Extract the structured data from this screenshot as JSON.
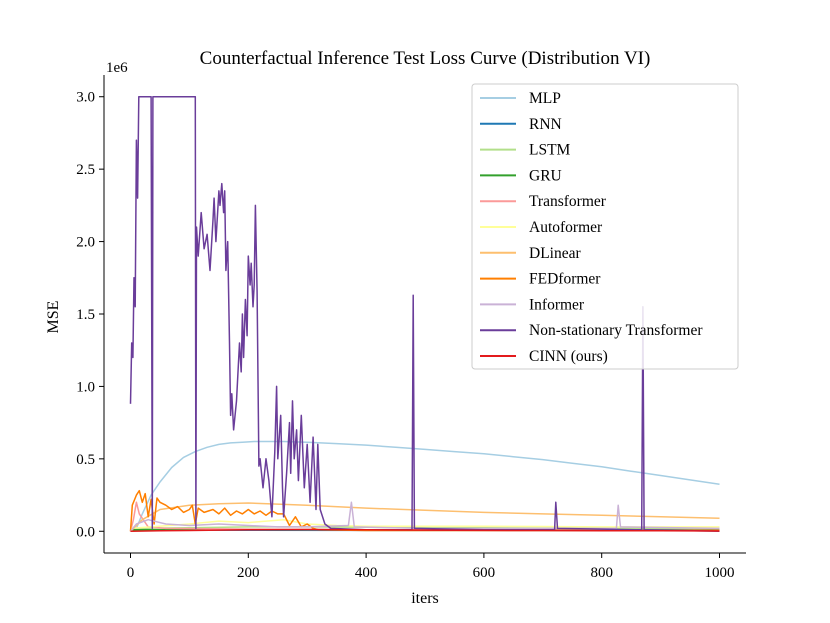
{
  "chart_data": {
    "type": "line",
    "title": "Counterfactual Inference Test Loss Curve (Distribution VI)",
    "xlabel": "iters",
    "ylabel": "MSE",
    "y_scale_label": "1e6",
    "xlim": [
      -45,
      1045
    ],
    "ylim": [
      -0.15,
      3.15
    ],
    "x_ticks": [
      0,
      200,
      400,
      600,
      800,
      1000
    ],
    "x_tick_labels": [
      "0",
      "200",
      "400",
      "600",
      "800",
      "1000"
    ],
    "y_ticks": [
      0.0,
      0.5,
      1.0,
      1.5,
      2.0,
      2.5,
      3.0
    ],
    "y_tick_labels": [
      "0.0",
      "0.5",
      "1.0",
      "1.5",
      "2.0",
      "2.5",
      "3.0"
    ],
    "legend_position": "upper-right",
    "series": [
      {
        "name": "MLP",
        "color": "#a6cee3",
        "points": [
          [
            0,
            0.0
          ],
          [
            10,
            0.02
          ],
          [
            20,
            0.12
          ],
          [
            35,
            0.25
          ],
          [
            50,
            0.34
          ],
          [
            70,
            0.44
          ],
          [
            90,
            0.51
          ],
          [
            110,
            0.55
          ],
          [
            130,
            0.58
          ],
          [
            150,
            0.6
          ],
          [
            170,
            0.61
          ],
          [
            190,
            0.615
          ],
          [
            210,
            0.62
          ],
          [
            230,
            0.62
          ],
          [
            260,
            0.62
          ],
          [
            300,
            0.615
          ],
          [
            350,
            0.605
          ],
          [
            400,
            0.595
          ],
          [
            450,
            0.58
          ],
          [
            500,
            0.565
          ],
          [
            550,
            0.55
          ],
          [
            600,
            0.535
          ],
          [
            650,
            0.515
          ],
          [
            700,
            0.495
          ],
          [
            750,
            0.47
          ],
          [
            800,
            0.445
          ],
          [
            850,
            0.415
          ],
          [
            900,
            0.385
          ],
          [
            950,
            0.355
          ],
          [
            1000,
            0.325
          ]
        ]
      },
      {
        "name": "RNN",
        "color": "#1f78b4",
        "points": [
          [
            0,
            0.01
          ],
          [
            100,
            0.008
          ],
          [
            200,
            0.007
          ],
          [
            400,
            0.006
          ],
          [
            600,
            0.006
          ],
          [
            800,
            0.005
          ],
          [
            1000,
            0.005
          ]
        ]
      },
      {
        "name": "LSTM",
        "color": "#b2df8a",
        "points": [
          [
            0,
            0.02
          ],
          [
            100,
            0.025
          ],
          [
            200,
            0.03
          ],
          [
            300,
            0.03
          ],
          [
            400,
            0.028
          ],
          [
            500,
            0.025
          ],
          [
            600,
            0.025
          ],
          [
            700,
            0.022
          ],
          [
            800,
            0.02
          ],
          [
            900,
            0.02
          ],
          [
            1000,
            0.018
          ]
        ]
      },
      {
        "name": "GRU",
        "color": "#33a02c",
        "points": [
          [
            0,
            0.01
          ],
          [
            200,
            0.01
          ],
          [
            400,
            0.01
          ],
          [
            600,
            0.01
          ],
          [
            780,
            0.01
          ],
          [
            800,
            0.015
          ],
          [
            820,
            0.01
          ],
          [
            1000,
            0.01
          ]
        ]
      },
      {
        "name": "Transformer",
        "color": "#fb9a99",
        "points": [
          [
            0,
            0.0
          ],
          [
            5,
            0.08
          ],
          [
            10,
            0.2
          ],
          [
            15,
            0.12
          ],
          [
            30,
            0.03
          ],
          [
            60,
            0.02
          ],
          [
            200,
            0.015
          ],
          [
            400,
            0.01
          ],
          [
            600,
            0.01
          ],
          [
            1000,
            0.008
          ]
        ]
      },
      {
        "name": "Autoformer",
        "color": "#ffff99",
        "points": [
          [
            0,
            0.02
          ],
          [
            100,
            0.05
          ],
          [
            150,
            0.07
          ],
          [
            200,
            0.06
          ],
          [
            260,
            0.08
          ],
          [
            300,
            0.05
          ],
          [
            350,
            0.04
          ],
          [
            400,
            0.035
          ],
          [
            500,
            0.035
          ],
          [
            600,
            0.035
          ],
          [
            700,
            0.033
          ],
          [
            800,
            0.03
          ],
          [
            900,
            0.03
          ],
          [
            1000,
            0.03
          ]
        ]
      },
      {
        "name": "DLinear",
        "color": "#fdbf6f",
        "points": [
          [
            0,
            0.0
          ],
          [
            20,
            0.08
          ],
          [
            50,
            0.15
          ],
          [
            100,
            0.18
          ],
          [
            150,
            0.19
          ],
          [
            200,
            0.195
          ],
          [
            300,
            0.18
          ],
          [
            400,
            0.16
          ],
          [
            500,
            0.145
          ],
          [
            600,
            0.13
          ],
          [
            700,
            0.12
          ],
          [
            800,
            0.11
          ],
          [
            900,
            0.1
          ],
          [
            1000,
            0.09
          ]
        ]
      },
      {
        "name": "FEDformer",
        "color": "#ff7f00",
        "points": [
          [
            0,
            0.0
          ],
          [
            3,
            0.18
          ],
          [
            10,
            0.25
          ],
          [
            15,
            0.28
          ],
          [
            20,
            0.2
          ],
          [
            25,
            0.26
          ],
          [
            30,
            0.1
          ],
          [
            35,
            0.22
          ],
          [
            40,
            0.05
          ],
          [
            45,
            0.23
          ],
          [
            50,
            0.2
          ],
          [
            60,
            0.18
          ],
          [
            70,
            0.15
          ],
          [
            80,
            0.17
          ],
          [
            90,
            0.13
          ],
          [
            100,
            0.15
          ],
          [
            105,
            0.18
          ],
          [
            110,
            0.05
          ],
          [
            115,
            0.16
          ],
          [
            125,
            0.13
          ],
          [
            140,
            0.15
          ],
          [
            150,
            0.12
          ],
          [
            160,
            0.16
          ],
          [
            170,
            0.11
          ],
          [
            180,
            0.14
          ],
          [
            190,
            0.12
          ],
          [
            200,
            0.15
          ],
          [
            210,
            0.12
          ],
          [
            220,
            0.14
          ],
          [
            230,
            0.11
          ],
          [
            240,
            0.14
          ],
          [
            250,
            0.12
          ],
          [
            260,
            0.12
          ],
          [
            270,
            0.04
          ],
          [
            280,
            0.1
          ],
          [
            290,
            0.03
          ],
          [
            300,
            0.05
          ],
          [
            310,
            0.02
          ],
          [
            320,
            0.01
          ],
          [
            400,
            0.005
          ],
          [
            600,
            0.005
          ],
          [
            1000,
            0.005
          ]
        ]
      },
      {
        "name": "Informer",
        "color": "#cab2d6",
        "points": [
          [
            0,
            0.0
          ],
          [
            10,
            0.05
          ],
          [
            30,
            0.08
          ],
          [
            60,
            0.05
          ],
          [
            100,
            0.04
          ],
          [
            150,
            0.05
          ],
          [
            200,
            0.04
          ],
          [
            250,
            0.03
          ],
          [
            300,
            0.03
          ],
          [
            370,
            0.04
          ],
          [
            375,
            0.2
          ],
          [
            380,
            0.03
          ],
          [
            500,
            0.02
          ],
          [
            700,
            0.02
          ],
          [
            825,
            0.02
          ],
          [
            828,
            0.18
          ],
          [
            832,
            0.03
          ],
          [
            1000,
            0.02
          ]
        ]
      },
      {
        "name": "Non-stationary Transformer",
        "color": "#6a3d9a",
        "points": [
          [
            0,
            0.88
          ],
          [
            2,
            1.3
          ],
          [
            4,
            1.2
          ],
          [
            6,
            1.75
          ],
          [
            8,
            1.55
          ],
          [
            10,
            2.7
          ],
          [
            12,
            2.3
          ],
          [
            14,
            3.0
          ],
          [
            20,
            3.0
          ],
          [
            30,
            3.0
          ],
          [
            35,
            3.0
          ],
          [
            37,
            0.02
          ],
          [
            38,
            3.0
          ],
          [
            40,
            3.0
          ],
          [
            60,
            3.0
          ],
          [
            80,
            3.0
          ],
          [
            100,
            3.0
          ],
          [
            110,
            3.0
          ],
          [
            111,
            0.02
          ],
          [
            112,
            2.1
          ],
          [
            115,
            1.9
          ],
          [
            120,
            2.2
          ],
          [
            125,
            1.95
          ],
          [
            130,
            2.05
          ],
          [
            135,
            1.8
          ],
          [
            140,
            2.15
          ],
          [
            142,
            2.3
          ],
          [
            145,
            2.0
          ],
          [
            150,
            2.35
          ],
          [
            152,
            2.25
          ],
          [
            155,
            2.4
          ],
          [
            158,
            2.2
          ],
          [
            160,
            2.35
          ],
          [
            162,
            1.8
          ],
          [
            165,
            2.0
          ],
          [
            168,
            1.3
          ],
          [
            170,
            0.8
          ],
          [
            172,
            0.95
          ],
          [
            175,
            0.7
          ],
          [
            180,
            0.9
          ],
          [
            185,
            1.3
          ],
          [
            188,
            1.1
          ],
          [
            190,
            1.5
          ],
          [
            192,
            1.2
          ],
          [
            195,
            1.6
          ],
          [
            198,
            1.35
          ],
          [
            200,
            1.9
          ],
          [
            203,
            1.7
          ],
          [
            205,
            1.85
          ],
          [
            208,
            1.55
          ],
          [
            210,
            1.7
          ],
          [
            212,
            2.25
          ],
          [
            215,
            1.65
          ],
          [
            218,
            0.45
          ],
          [
            220,
            0.5
          ],
          [
            225,
            0.3
          ],
          [
            230,
            0.5
          ],
          [
            235,
            0.35
          ],
          [
            240,
            0.1
          ],
          [
            245,
            0.55
          ],
          [
            248,
            1.0
          ],
          [
            250,
            0.5
          ],
          [
            255,
            0.8
          ],
          [
            258,
            0.3
          ],
          [
            260,
            0.1
          ],
          [
            265,
            0.4
          ],
          [
            270,
            0.75
          ],
          [
            272,
            0.4
          ],
          [
            275,
            0.9
          ],
          [
            278,
            0.5
          ],
          [
            282,
            0.7
          ],
          [
            285,
            0.35
          ],
          [
            290,
            0.8
          ],
          [
            295,
            0.3
          ],
          [
            300,
            0.6
          ],
          [
            305,
            0.2
          ],
          [
            310,
            0.65
          ],
          [
            312,
            0.45
          ],
          [
            315,
            0.15
          ],
          [
            318,
            0.6
          ],
          [
            322,
            0.15
          ],
          [
            330,
            0.05
          ],
          [
            340,
            0.02
          ],
          [
            400,
            0.01
          ],
          [
            478,
            0.01
          ],
          [
            480,
            1.63
          ],
          [
            482,
            0.02
          ],
          [
            600,
            0.01
          ],
          [
            720,
            0.01
          ],
          [
            722,
            0.2
          ],
          [
            725,
            0.02
          ],
          [
            868,
            0.01
          ],
          [
            870,
            1.55
          ],
          [
            872,
            0.01
          ],
          [
            1000,
            0.0
          ]
        ]
      },
      {
        "name": "CINN (ours)",
        "color": "#e31a1c",
        "points": [
          [
            0,
            0.0
          ],
          [
            50,
            0.003
          ],
          [
            100,
            0.005
          ],
          [
            200,
            0.01
          ],
          [
            300,
            0.012
          ],
          [
            400,
            0.01
          ],
          [
            500,
            0.008
          ],
          [
            600,
            0.006
          ],
          [
            700,
            0.005
          ],
          [
            800,
            0.004
          ],
          [
            900,
            0.003
          ],
          [
            1000,
            0.002
          ]
        ]
      }
    ]
  }
}
